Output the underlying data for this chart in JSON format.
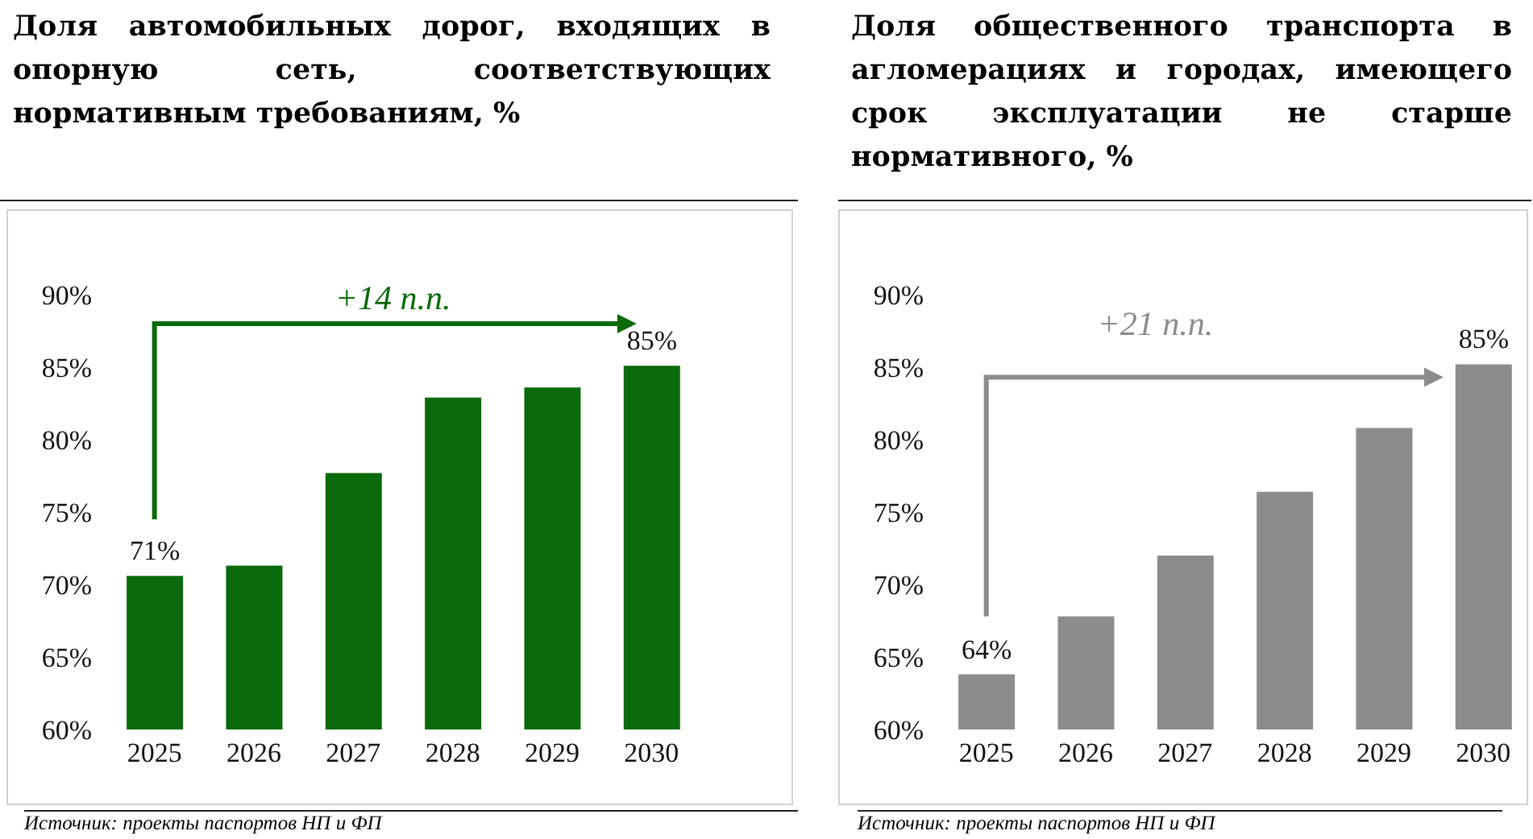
{
  "chart_data": [
    {
      "type": "bar",
      "title": "Доля автомобильных дорог, входящих в опорную сеть, соответствующих нормативным требованиям, %",
      "categories": [
        "2025",
        "2026",
        "2027",
        "2028",
        "2029",
        "2030"
      ],
      "values": [
        70.6,
        71.3,
        77.7,
        82.9,
        83.6,
        85.1
      ],
      "color": "#0b6a0b",
      "value_labels": [
        "71%",
        null,
        null,
        null,
        null,
        "85%"
      ],
      "ylim": [
        60,
        90
      ],
      "yticks": [
        {
          "value": 60,
          "label": "60%"
        },
        {
          "value": 65,
          "label": "65%"
        },
        {
          "value": 70,
          "label": "70%"
        },
        {
          "value": 75,
          "label": "75%"
        },
        {
          "value": 80,
          "label": "80%"
        },
        {
          "value": 85,
          "label": "85%"
        },
        {
          "value": 90,
          "label": "90%"
        }
      ],
      "grid": false,
      "annotations": [
        "+14 п.п.",
        "Источник: проекты паспортов НП и ФП"
      ]
    },
    {
      "type": "bar",
      "title": "Доля общественного транспорта в агломерациях и городах, имеющего срок эксплуатации не старше нормативного, %",
      "categories": [
        "2025",
        "2026",
        "2027",
        "2028",
        "2029",
        "2030"
      ],
      "values": [
        63.8,
        67.8,
        72.0,
        76.4,
        80.8,
        85.2
      ],
      "color": "#8c8c8c",
      "value_labels": [
        "64%",
        null,
        null,
        null,
        null,
        "85%"
      ],
      "ylim": [
        60,
        90
      ],
      "yticks": [
        {
          "value": 60,
          "label": "60%"
        },
        {
          "value": 65,
          "label": "65%"
        },
        {
          "value": 70,
          "label": "70%"
        },
        {
          "value": 75,
          "label": "75%"
        },
        {
          "value": 80,
          "label": "80%"
        },
        {
          "value": 85,
          "label": "85%"
        },
        {
          "value": 90,
          "label": "90%"
        }
      ],
      "grid": false,
      "annotations": [
        "+21 п.п.",
        "Источник: проекты паспортов НП и ФП"
      ]
    }
  ]
}
